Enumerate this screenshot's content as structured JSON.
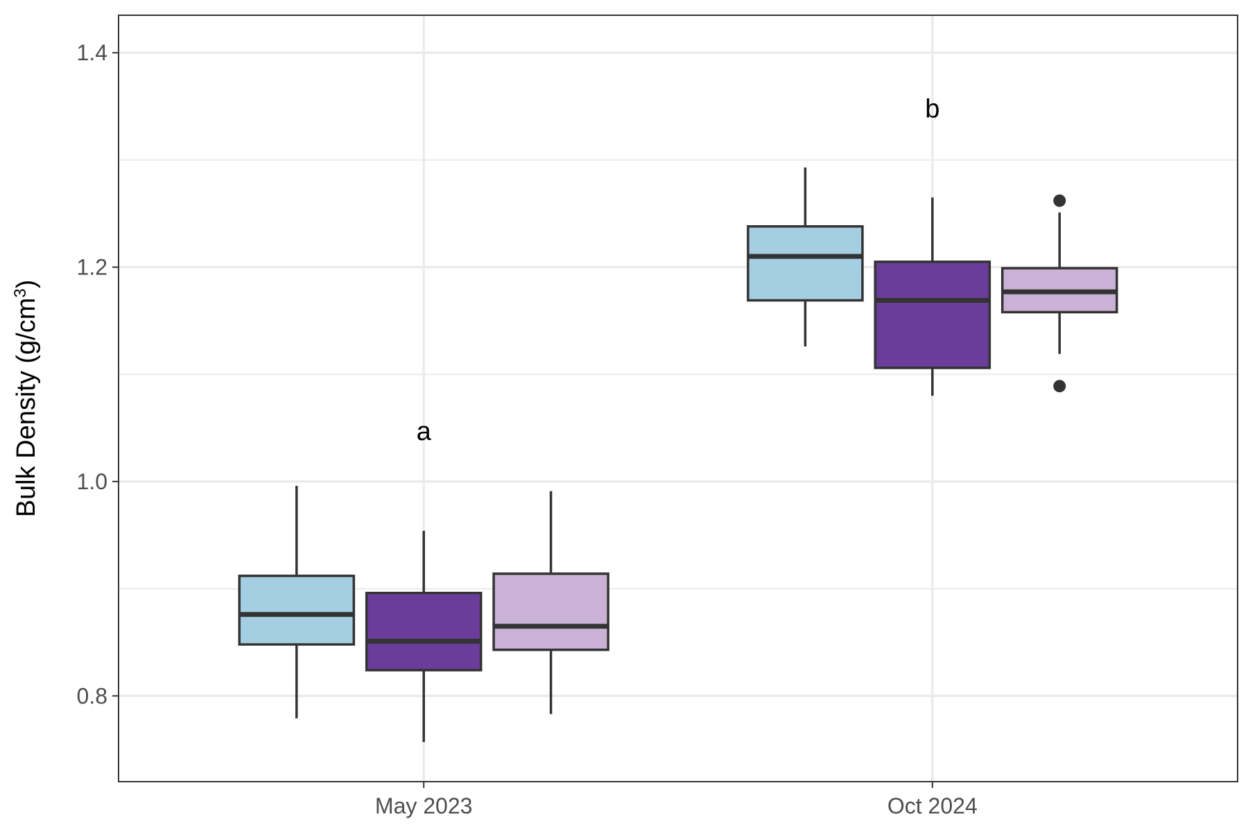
{
  "chart_data": {
    "type": "box",
    "title": "",
    "xlabel": "",
    "ylabel": "Bulk Density (g/cm³)",
    "ylabel_parts": {
      "main": "Bulk Density  (g/cm",
      "sup": "3",
      "close": ")"
    },
    "ylim": [
      0.72,
      1.435
    ],
    "yticks": [
      0.8,
      1.0,
      1.2,
      1.4
    ],
    "ytick_labels": [
      "0.8",
      "1.0",
      "1.2",
      "1.4"
    ],
    "minor_yticks": [
      0.9,
      1.1,
      1.3
    ],
    "grid": true,
    "legend": "none",
    "categories": [
      "May 2023",
      "Oct 2024"
    ],
    "annotations": [
      {
        "category": "May 2023",
        "y": 1.047,
        "text": "a"
      },
      {
        "category": "Oct 2024",
        "y": 1.348,
        "text": "b"
      }
    ],
    "series": [
      {
        "color": "#a6cee3",
        "boxes": [
          {
            "category": "May 2023",
            "whisker_low": 0.779,
            "q1": 0.848,
            "median": 0.876,
            "q3": 0.912,
            "whisker_high": 0.996,
            "outliers": []
          },
          {
            "category": "Oct 2024",
            "whisker_low": 1.126,
            "q1": 1.169,
            "median": 1.21,
            "q3": 1.238,
            "whisker_high": 1.293,
            "outliers": []
          }
        ]
      },
      {
        "color": "#6a3d9a",
        "boxes": [
          {
            "category": "May 2023",
            "whisker_low": 0.757,
            "q1": 0.824,
            "median": 0.851,
            "q3": 0.896,
            "whisker_high": 0.954,
            "outliers": []
          },
          {
            "category": "Oct 2024",
            "whisker_low": 1.08,
            "q1": 1.106,
            "median": 1.169,
            "q3": 1.205,
            "whisker_high": 1.265,
            "outliers": []
          }
        ]
      },
      {
        "color": "#cab2d6",
        "boxes": [
          {
            "category": "May 2023",
            "whisker_low": 0.783,
            "q1": 0.843,
            "median": 0.865,
            "q3": 0.914,
            "whisker_high": 0.991,
            "outliers": []
          },
          {
            "category": "Oct 2024",
            "whisker_low": 1.119,
            "q1": 1.158,
            "median": 1.177,
            "q3": 1.199,
            "whisker_high": 1.251,
            "outliers": [
              1.262,
              1.089
            ]
          }
        ]
      }
    ]
  },
  "colors": {
    "outline": "#333333",
    "grid_major": "#ebebeb",
    "panel_border": "#333333"
  }
}
